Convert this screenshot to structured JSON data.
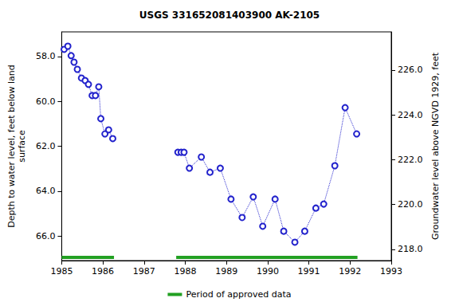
{
  "chart_data": {
    "type": "line",
    "title": "USGS 331652081403900 AK-2105",
    "y_label": "Depth to water level, feet below land\nsurface",
    "y2_label": "Groundwater level above NGVD 1929, feet",
    "x": [
      1985.06,
      1985.15,
      1985.23,
      1985.3,
      1985.38,
      1985.48,
      1985.57,
      1985.65,
      1985.74,
      1985.82,
      1985.9,
      1985.95,
      1986.05,
      1986.14,
      1986.24,
      null,
      1987.82,
      1987.9,
      1987.97,
      1988.1,
      1988.39,
      1988.6,
      1988.85,
      1989.11,
      1989.38,
      1989.65,
      1989.88,
      1990.18,
      1990.39,
      1990.66,
      1990.9,
      1991.17,
      1991.36,
      1991.63,
      1991.88,
      1992.16
    ],
    "values": [
      57.68,
      57.54,
      57.96,
      58.25,
      58.57,
      58.96,
      59.07,
      59.24,
      59.74,
      59.74,
      59.35,
      60.77,
      61.45,
      61.27,
      61.66,
      null,
      62.27,
      62.27,
      62.27,
      62.98,
      62.48,
      63.16,
      62.98,
      64.36,
      65.18,
      64.26,
      65.57,
      64.36,
      65.79,
      66.28,
      65.79,
      64.76,
      64.58,
      62.87,
      60.28,
      61.45
    ],
    "color": "#2222cc",
    "marker": "circle",
    "line_style": "dotted",
    "xlim": [
      1985,
      1993
    ],
    "xticks": [
      1985,
      1986,
      1987,
      1988,
      1989,
      1990,
      1991,
      1992,
      1993
    ],
    "ylim": [
      56.9,
      67.1
    ],
    "yticks": [
      {
        "value": 58,
        "label": "58.0"
      },
      {
        "value": 60,
        "label": "60.0"
      },
      {
        "value": 62,
        "label": "62.0"
      },
      {
        "value": 64,
        "label": "64.0"
      },
      {
        "value": 66,
        "label": "66.0"
      }
    ],
    "y2lim": [
      217.5,
      227.7
    ],
    "y2ticks": [
      {
        "value": 218,
        "label": "218.0"
      },
      {
        "value": 220,
        "label": "220.0"
      },
      {
        "value": 222,
        "label": "222.0"
      },
      {
        "value": 224,
        "label": "224.0"
      },
      {
        "value": 226,
        "label": "226.0"
      }
    ],
    "approved_periods": {
      "name": "Period of approved data",
      "color": "#22a022",
      "ranges": [
        [
          1985.0,
          1986.27
        ],
        [
          1987.78,
          1992.18
        ]
      ]
    },
    "legend": "bottom",
    "grid": false
  }
}
